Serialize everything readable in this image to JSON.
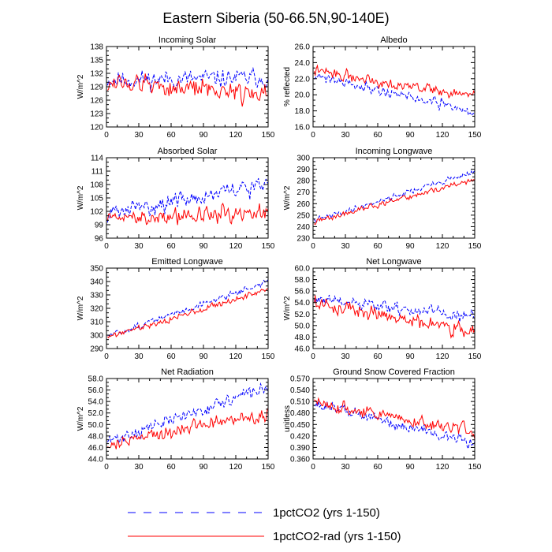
{
  "figure": {
    "title": "Eastern Siberia (50-66.5N,90-140E)"
  },
  "legend": [
    {
      "name": "1pctCO2 (yrs 1-150)",
      "color": "#0000ff",
      "dash": true
    },
    {
      "name": "1pctCO2-rad (yrs 1-150)",
      "color": "#ff0000",
      "dash": false
    }
  ],
  "chart_data": [
    {
      "type": "line",
      "title": "Incoming Solar",
      "ylabel": "W/m^2",
      "xlim": [
        0,
        150
      ],
      "xticks": [
        0,
        30,
        60,
        90,
        120,
        150
      ],
      "ylim": [
        120,
        138
      ],
      "yticks": [
        "120",
        "123",
        "126",
        "129",
        "132",
        "135",
        "138"
      ],
      "series": [
        {
          "name": "1pctCO2 (yrs 1-150)",
          "start": 130.5,
          "end": 131.0,
          "noise": 1.8,
          "seed": 11
        },
        {
          "name": "1pctCO2-rad (yrs 1-150)",
          "start": 130.0,
          "end": 127.5,
          "noise": 2.0,
          "seed": 12
        }
      ]
    },
    {
      "type": "line",
      "title": "Albedo",
      "ylabel": "% reflected",
      "xlim": [
        0,
        150
      ],
      "xticks": [
        0,
        30,
        60,
        90,
        120,
        150
      ],
      "ylim": [
        16,
        26
      ],
      "yticks": [
        "16.0",
        "18.0",
        "20.0",
        "22.0",
        "24.0",
        "26.0"
      ],
      "series": [
        {
          "name": "1pctCO2 (yrs 1-150)",
          "start": 22.5,
          "end": 17.8,
          "noise": 0.6,
          "seed": 21
        },
        {
          "name": "1pctCO2-rad (yrs 1-150)",
          "start": 23.0,
          "end": 19.8,
          "noise": 0.6,
          "seed": 22
        }
      ]
    },
    {
      "type": "line",
      "title": "Absorbed Solar",
      "ylabel": "W/m^2",
      "xlim": [
        0,
        150
      ],
      "xticks": [
        0,
        30,
        60,
        90,
        120,
        150
      ],
      "ylim": [
        96,
        114
      ],
      "yticks": [
        "96",
        "99",
        "102",
        "105",
        "108",
        "111",
        "114"
      ],
      "series": [
        {
          "name": "1pctCO2 (yrs 1-150)",
          "start": 101.5,
          "end": 108.0,
          "noise": 1.7,
          "seed": 31
        },
        {
          "name": "1pctCO2-rad (yrs 1-150)",
          "start": 100.5,
          "end": 101.5,
          "noise": 1.7,
          "seed": 32
        }
      ]
    },
    {
      "type": "line",
      "title": "Incoming Longwave",
      "ylabel": "W/m^2",
      "xlim": [
        0,
        150
      ],
      "xticks": [
        0,
        30,
        60,
        90,
        120,
        150
      ],
      "ylim": [
        230,
        300
      ],
      "yticks": [
        "230",
        "240",
        "250",
        "260",
        "270",
        "280",
        "290",
        "300"
      ],
      "series": [
        {
          "name": "1pctCO2 (yrs 1-150)",
          "start": 245.0,
          "end": 288.0,
          "noise": 2.2,
          "seed": 41
        },
        {
          "name": "1pctCO2-rad (yrs 1-150)",
          "start": 244.0,
          "end": 281.0,
          "noise": 2.2,
          "seed": 42
        }
      ]
    },
    {
      "type": "line",
      "title": "Emitted Longwave",
      "ylabel": "W/m^2",
      "xlim": [
        0,
        150
      ],
      "xticks": [
        0,
        30,
        60,
        90,
        120,
        150
      ],
      "ylim": [
        290,
        350
      ],
      "yticks": [
        "290",
        "300",
        "310",
        "320",
        "330",
        "340",
        "350"
      ],
      "series": [
        {
          "name": "1pctCO2 (yrs 1-150)",
          "start": 299.0,
          "end": 340.0,
          "noise": 2.0,
          "seed": 51
        },
        {
          "name": "1pctCO2-rad (yrs 1-150)",
          "start": 298.5,
          "end": 334.0,
          "noise": 2.0,
          "seed": 52
        }
      ]
    },
    {
      "type": "line",
      "title": "Net Longwave",
      "ylabel": "W/m^2",
      "xlim": [
        0,
        150
      ],
      "xticks": [
        0,
        30,
        60,
        90,
        120,
        150
      ],
      "ylim": [
        46,
        60
      ],
      "yticks": [
        "46.0",
        "48.0",
        "50.0",
        "52.0",
        "54.0",
        "56.0",
        "58.0",
        "60.0"
      ],
      "series": [
        {
          "name": "1pctCO2 (yrs 1-150)",
          "start": 54.5,
          "end": 51.5,
          "noise": 1.0,
          "seed": 61
        },
        {
          "name": "1pctCO2-rad (yrs 1-150)",
          "start": 54.0,
          "end": 49.0,
          "noise": 1.1,
          "seed": 62
        }
      ]
    },
    {
      "type": "line",
      "title": "Net Radiation",
      "ylabel": "W/m^2",
      "xlim": [
        0,
        150
      ],
      "xticks": [
        0,
        30,
        60,
        90,
        120,
        150
      ],
      "ylim": [
        44,
        58
      ],
      "yticks": [
        "44.0",
        "46.0",
        "48.0",
        "50.0",
        "52.0",
        "54.0",
        "56.0",
        "58.0"
      ],
      "series": [
        {
          "name": "1pctCO2 (yrs 1-150)",
          "start": 47.0,
          "end": 56.5,
          "noise": 1.0,
          "seed": 71
        },
        {
          "name": "1pctCO2-rad (yrs 1-150)",
          "start": 46.5,
          "end": 52.0,
          "noise": 1.1,
          "seed": 72
        }
      ]
    },
    {
      "type": "line",
      "title": "Ground Snow Covered Fraction",
      "ylabel": "unitless",
      "xlim": [
        0,
        150
      ],
      "xticks": [
        0,
        30,
        60,
        90,
        120,
        150
      ],
      "ylim": [
        0.36,
        0.57
      ],
      "yticks": [
        "0.360",
        "0.390",
        "0.420",
        "0.450",
        "0.480",
        "0.510",
        "0.540",
        "0.570"
      ],
      "series": [
        {
          "name": "1pctCO2 (yrs 1-150)",
          "start": 0.505,
          "end": 0.4,
          "noise": 0.014,
          "seed": 81
        },
        {
          "name": "1pctCO2-rad (yrs 1-150)",
          "start": 0.508,
          "end": 0.43,
          "noise": 0.014,
          "seed": 82
        }
      ]
    }
  ]
}
